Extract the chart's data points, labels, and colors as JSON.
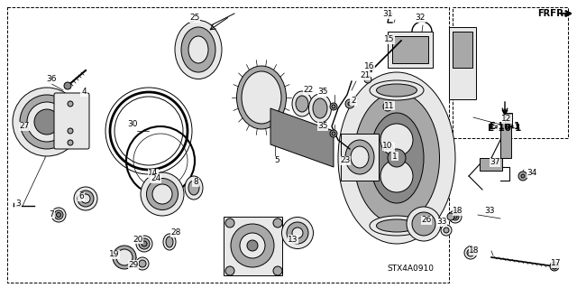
{
  "bg_color": "#ffffff",
  "line_color": "#000000",
  "text_color": "#000000",
  "gray1": "#c8c8c8",
  "gray2": "#a8a8a8",
  "gray3": "#888888",
  "gray4": "#e8e8e8",
  "ref_label": "E-10-1",
  "fr_label": "FR.",
  "code_label": "STX4A0910",
  "lw": 0.7,
  "fs": 6.5,
  "figw": 6.4,
  "figh": 3.19,
  "dpi": 100
}
